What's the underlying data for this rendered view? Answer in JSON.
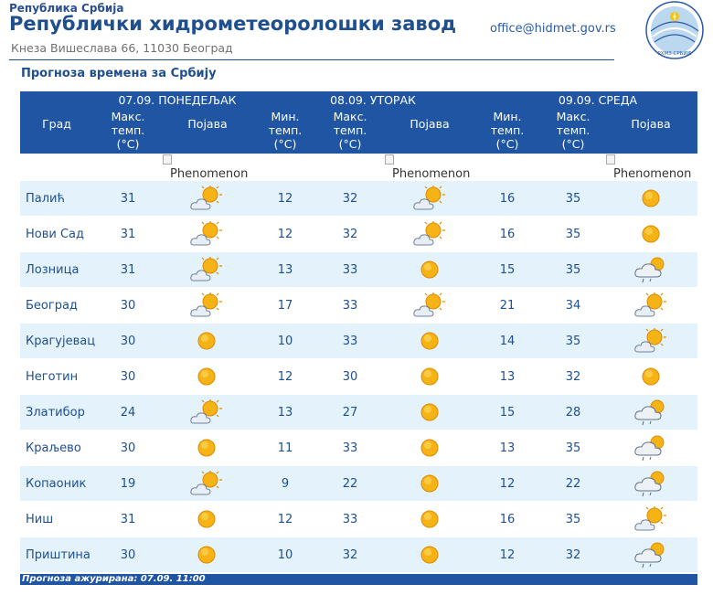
{
  "header": {
    "republic": "Република Србија",
    "institute": "Републички хидрометеоролошки завод",
    "address": "Кнеза Вишеслава 66, 11030 Београд",
    "email": "office@hidmet.gov.rs",
    "logo_text": "РХМЗ СРБИЈЕ"
  },
  "subtitle": "Прогноза времена за Србију",
  "table": {
    "city_header": "Град",
    "days": [
      {
        "label": "07.09. ПОНЕДЕЉАК"
      },
      {
        "label": "08.09. УТОРАК"
      },
      {
        "label": "09.09. СРЕДА"
      }
    ],
    "col_max": "Макс. темп. (°C)",
    "col_min": "Мин. темп. (°C)",
    "col_phen": "Појава",
    "phen_alt": "Phenomenon",
    "rows": [
      {
        "city": "Палић",
        "d1max": "31",
        "d1icon": "partly-cloudy-sun-icon",
        "d2min": "12",
        "d2max": "32",
        "d2icon": "partly-cloudy-sun-icon",
        "d3min": "16",
        "d3max": "35",
        "d3icon": "sun-icon"
      },
      {
        "city": "Нови Сад",
        "d1max": "31",
        "d1icon": "partly-cloudy-sun-icon",
        "d2min": "12",
        "d2max": "32",
        "d2icon": "partly-cloudy-sun-icon",
        "d3min": "16",
        "d3max": "35",
        "d3icon": "sun-icon"
      },
      {
        "city": "Лозница",
        "d1max": "31",
        "d1icon": "partly-cloudy-sun-icon",
        "d2min": "13",
        "d2max": "33",
        "d2icon": "sun-icon",
        "d3min": "15",
        "d3max": "35",
        "d3icon": "cloud-sun-shower-icon"
      },
      {
        "city": "Београд",
        "d1max": "30",
        "d1icon": "partly-cloudy-sun-icon",
        "d2min": "17",
        "d2max": "33",
        "d2icon": "partly-cloudy-sun-icon",
        "d3min": "21",
        "d3max": "34",
        "d3icon": "partly-cloudy-sun-icon"
      },
      {
        "city": "Крагујевац",
        "d1max": "30",
        "d1icon": "sun-icon",
        "d2min": "10",
        "d2max": "33",
        "d2icon": "sun-icon",
        "d3min": "14",
        "d3max": "35",
        "d3icon": "partly-cloudy-sun-icon"
      },
      {
        "city": "Неготин",
        "d1max": "30",
        "d1icon": "sun-icon",
        "d2min": "12",
        "d2max": "30",
        "d2icon": "sun-icon",
        "d3min": "13",
        "d3max": "32",
        "d3icon": "sun-icon"
      },
      {
        "city": "Златибор",
        "d1max": "24",
        "d1icon": "partly-cloudy-sun-icon",
        "d2min": "13",
        "d2max": "27",
        "d2icon": "sun-icon",
        "d3min": "15",
        "d3max": "28",
        "d3icon": "cloud-sun-shower-icon"
      },
      {
        "city": "Краљево",
        "d1max": "30",
        "d1icon": "sun-icon",
        "d2min": "11",
        "d2max": "33",
        "d2icon": "sun-icon",
        "d3min": "13",
        "d3max": "35",
        "d3icon": "cloud-sun-shower-icon"
      },
      {
        "city": "Копаоник",
        "d1max": "19",
        "d1icon": "partly-cloudy-sun-icon",
        "d2min": "9",
        "d2max": "22",
        "d2icon": "sun-icon",
        "d3min": "12",
        "d3max": "22",
        "d3icon": "cloud-sun-shower-icon"
      },
      {
        "city": "Ниш",
        "d1max": "31",
        "d1icon": "sun-icon",
        "d2min": "12",
        "d2max": "33",
        "d2icon": "sun-icon",
        "d3min": "16",
        "d3max": "35",
        "d3icon": "partly-cloudy-sun-icon"
      },
      {
        "city": "Приштина",
        "d1max": "30",
        "d1icon": "sun-icon",
        "d2min": "10",
        "d2max": "32",
        "d2icon": "sun-icon",
        "d3min": "12",
        "d3max": "32",
        "d3icon": "cloud-sun-shower-icon"
      }
    ]
  },
  "footer": "Прогноза ажурирана: 07.09. 11:00",
  "colors": {
    "header_bg": "#1f55a3",
    "row_alt": "#e3f2fb",
    "text": "#1f4f8f"
  }
}
